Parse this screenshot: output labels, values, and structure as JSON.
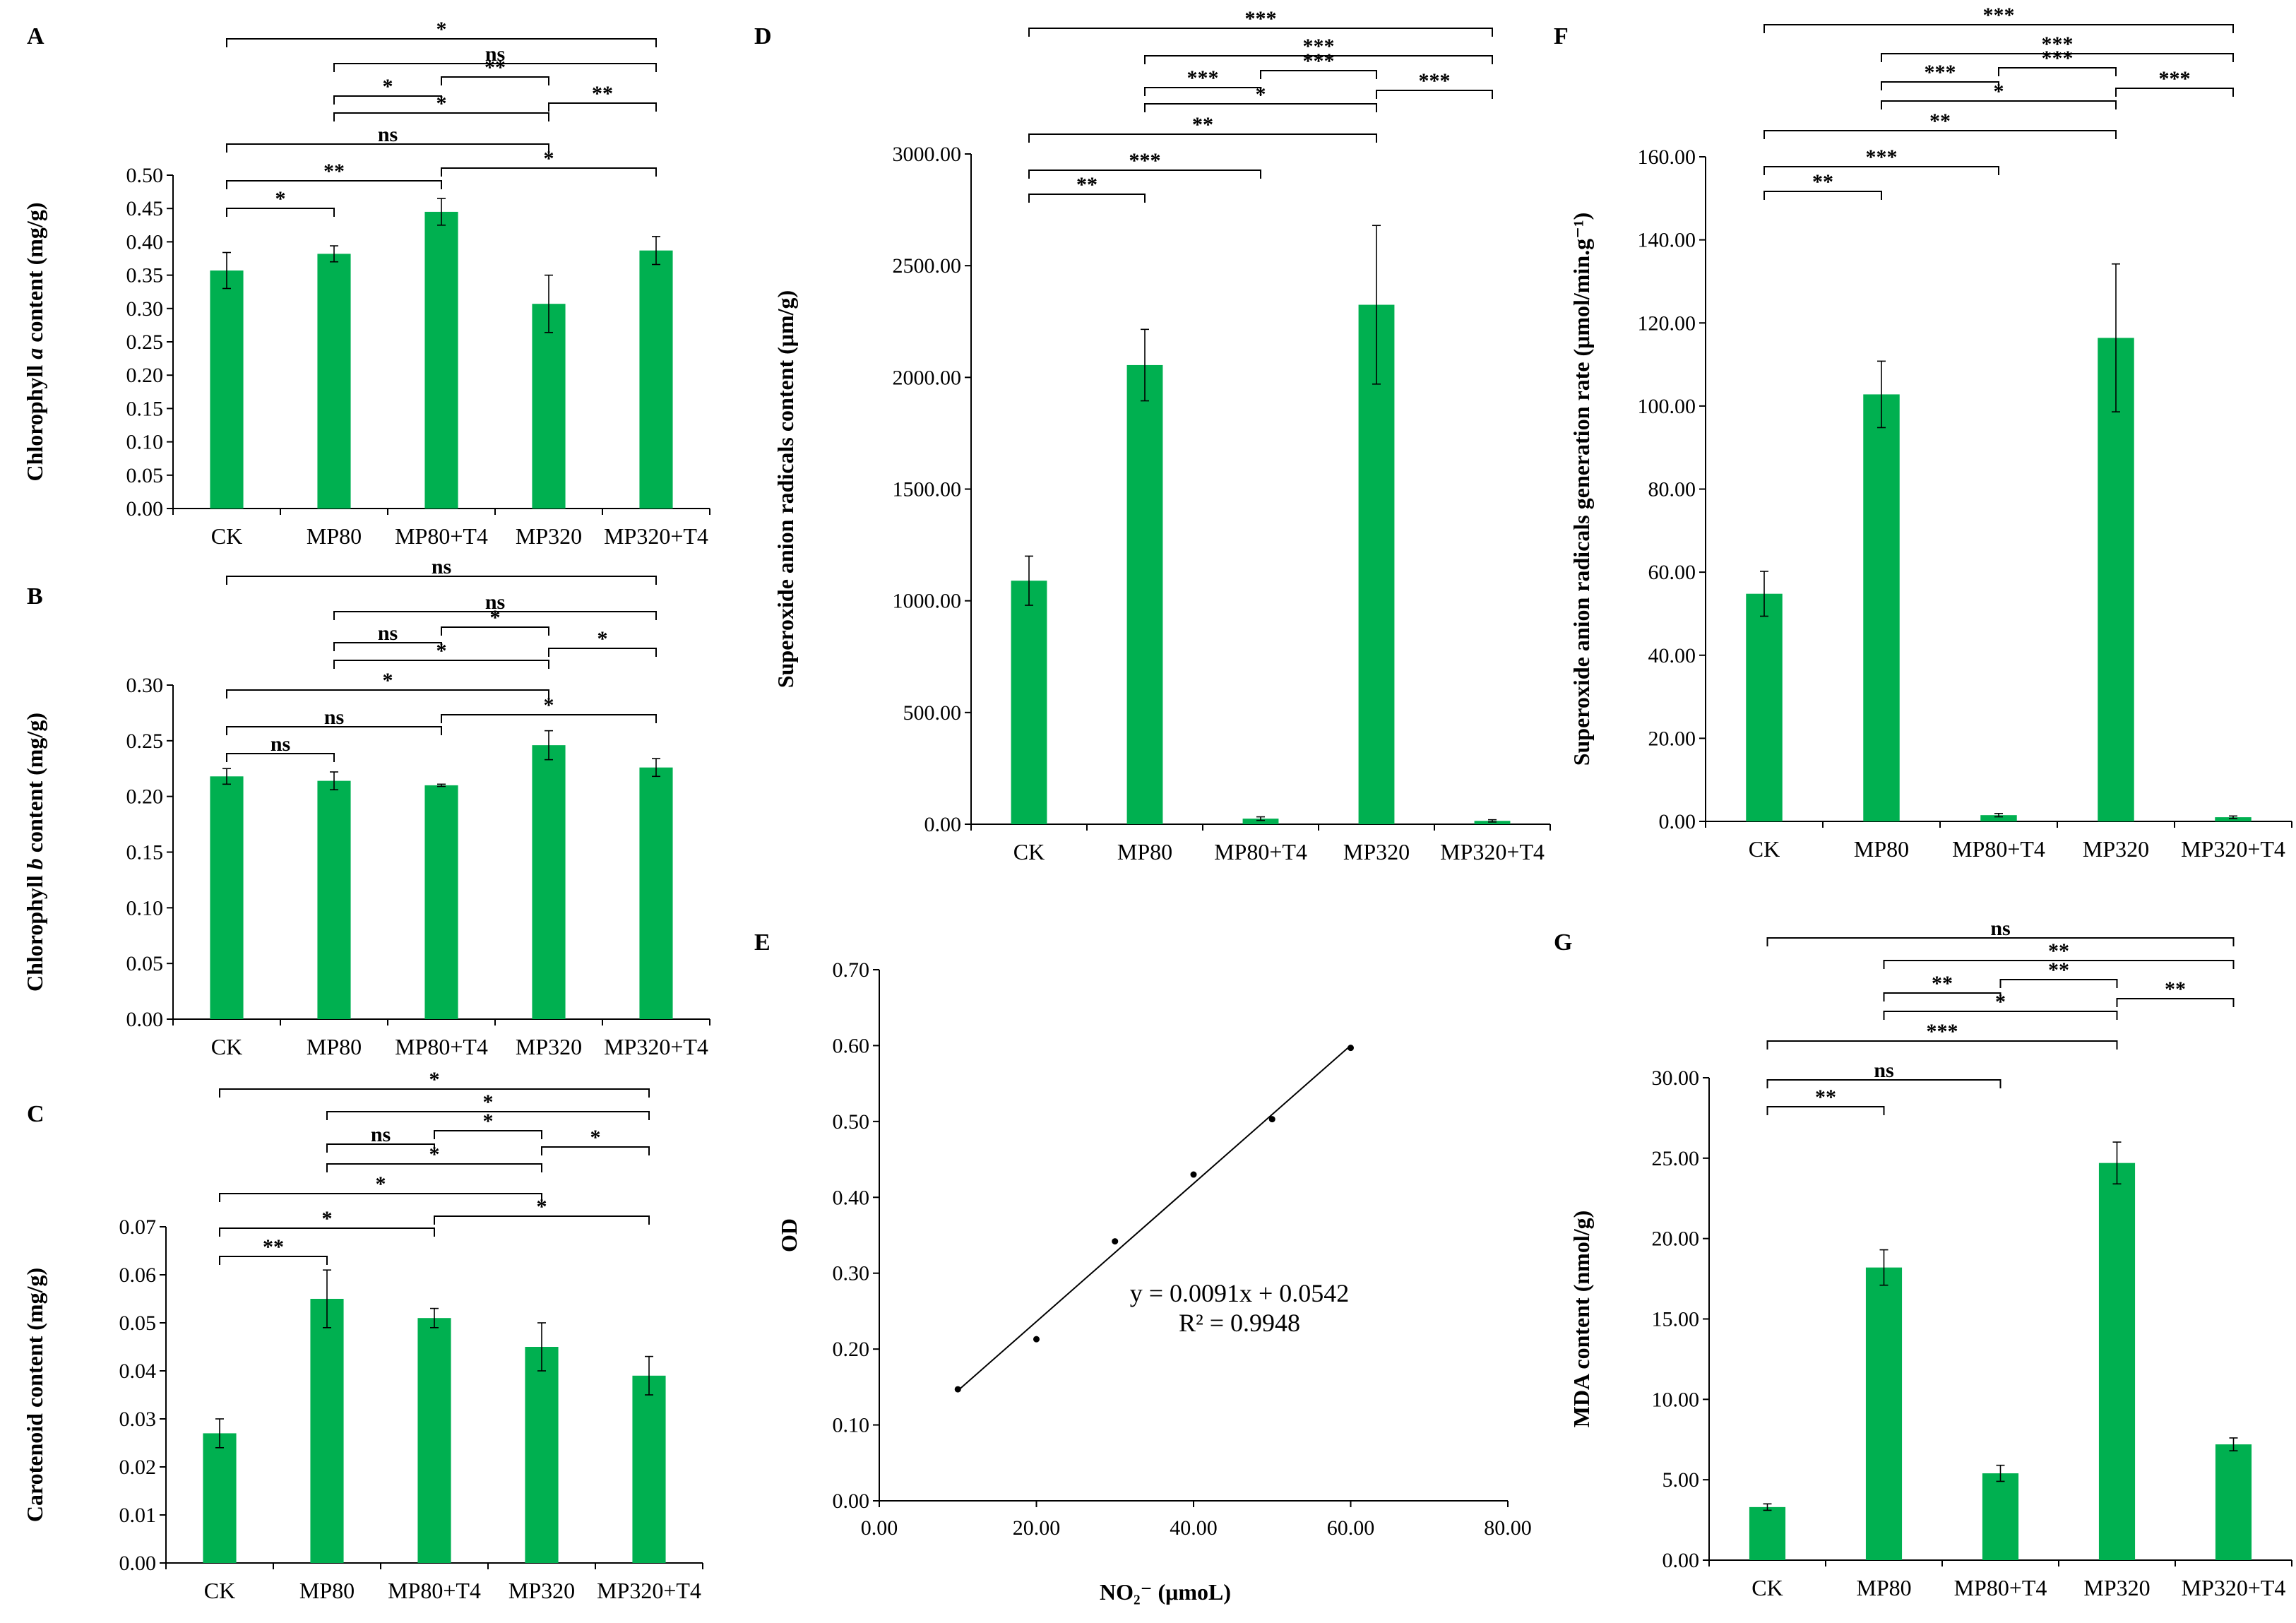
{
  "chart_data": [
    {
      "id": "A",
      "type": "bar",
      "panel_label": "A",
      "categories": [
        "CK",
        "MP80",
        "MP80+T4",
        "MP320",
        "MP320+T4"
      ],
      "values": [
        0.357,
        0.382,
        0.445,
        0.307,
        0.387
      ],
      "errors": [
        0.027,
        0.012,
        0.02,
        0.043,
        0.021
      ],
      "ylabel_pre": "Chlorophyll ",
      "ylabel_it": "a",
      "ylabel_post": " content (mg/g)",
      "ylim": [
        0,
        0.5
      ],
      "yticks": [
        "0.00",
        "0.05",
        "0.10",
        "0.15",
        "0.20",
        "0.25",
        "0.30",
        "0.35",
        "0.40",
        "0.45",
        "0.50"
      ],
      "bar_color": "#00B050",
      "brackets": [
        {
          "from": 0,
          "to": 4,
          "label": "*"
        },
        {
          "from": 1,
          "to": 4,
          "label": "ns"
        },
        {
          "from": 2,
          "to": 3,
          "label": "**"
        },
        {
          "from": 1,
          "to": 2,
          "label": "*"
        },
        {
          "from": 3,
          "to": 4,
          "label": "**"
        },
        {
          "from": 1,
          "to": 3,
          "label": "*"
        },
        {
          "from": 0,
          "to": 3,
          "label": "ns"
        },
        {
          "from": 0,
          "to": 2,
          "label": "**"
        },
        {
          "from": 2,
          "to": 4,
          "label": "*"
        },
        {
          "from": 0,
          "to": 1,
          "label": "*"
        }
      ]
    },
    {
      "id": "B",
      "type": "bar",
      "panel_label": "B",
      "categories": [
        "CK",
        "MP80",
        "MP80+T4",
        "MP320",
        "MP320+T4"
      ],
      "values": [
        0.218,
        0.214,
        0.21,
        0.246,
        0.226
      ],
      "errors": [
        0.007,
        0.008,
        0.001,
        0.013,
        0.008
      ],
      "ylabel_pre": "Chlorophyll ",
      "ylabel_it": "b",
      "ylabel_post": " content (mg/g)",
      "ylim": [
        0,
        0.3
      ],
      "yticks": [
        "0.00",
        "0.05",
        "0.10",
        "0.15",
        "0.20",
        "0.25",
        "0.30"
      ],
      "bar_color": "#00B050",
      "brackets": [
        {
          "from": 0,
          "to": 4,
          "label": "ns"
        },
        {
          "from": 1,
          "to": 4,
          "label": "ns"
        },
        {
          "from": 1,
          "to": 2,
          "label": "ns"
        },
        {
          "from": 2,
          "to": 3,
          "label": "*"
        },
        {
          "from": 1,
          "to": 3,
          "label": "*"
        },
        {
          "from": 3,
          "to": 4,
          "label": "*"
        },
        {
          "from": 0,
          "to": 3,
          "label": "*"
        },
        {
          "from": 0,
          "to": 2,
          "label": "ns"
        },
        {
          "from": 2,
          "to": 4,
          "label": "*"
        },
        {
          "from": 0,
          "to": 1,
          "label": "ns"
        }
      ]
    },
    {
      "id": "C",
      "type": "bar",
      "panel_label": "C",
      "categories": [
        "CK",
        "MP80",
        "MP80+T4",
        "MP320",
        "MP320+T4"
      ],
      "values": [
        0.027,
        0.055,
        0.051,
        0.045,
        0.039
      ],
      "errors": [
        0.003,
        0.006,
        0.002,
        0.005,
        0.004
      ],
      "ylabel_pre": "Carotenoid content (mg/g)",
      "ylabel_it": "",
      "ylabel_post": "",
      "ylim": [
        0,
        0.07
      ],
      "yticks": [
        "0.00",
        "0.01",
        "0.02",
        "0.03",
        "0.04",
        "0.05",
        "0.06",
        "0.07"
      ],
      "bar_color": "#00B050",
      "brackets": [
        {
          "from": 0,
          "to": 4,
          "label": "*"
        },
        {
          "from": 1,
          "to": 4,
          "label": "*"
        },
        {
          "from": 1,
          "to": 2,
          "label": "ns"
        },
        {
          "from": 2,
          "to": 3,
          "label": "*"
        },
        {
          "from": 3,
          "to": 4,
          "label": "*"
        },
        {
          "from": 1,
          "to": 3,
          "label": "*"
        },
        {
          "from": 0,
          "to": 3,
          "label": "*"
        },
        {
          "from": 0,
          "to": 2,
          "label": "*"
        },
        {
          "from": 2,
          "to": 4,
          "label": "*"
        },
        {
          "from": 0,
          "to": 1,
          "label": "**"
        }
      ]
    },
    {
      "id": "D",
      "type": "bar",
      "panel_label": "D",
      "categories": [
        "CK",
        "MP80",
        "MP80+T4",
        "MP320",
        "MP320+T4"
      ],
      "values": [
        1090,
        2055,
        25,
        2325,
        15
      ],
      "errors": [
        110,
        160,
        8,
        355,
        5
      ],
      "ylabel_pre": "Superoxide anion radicals content (μm/g)",
      "ylabel_it": "",
      "ylabel_post": "",
      "ylim": [
        0,
        3000
      ],
      "yticks": [
        "0.00",
        "500.00",
        "1000.00",
        "1500.00",
        "2000.00",
        "2500.00",
        "3000.00"
      ],
      "bar_color": "#00B050",
      "brackets": [
        {
          "from": 0,
          "to": 4,
          "label": "***"
        },
        {
          "from": 1,
          "to": 4,
          "label": "***"
        },
        {
          "from": 2,
          "to": 3,
          "label": "***"
        },
        {
          "from": 1,
          "to": 2,
          "label": "***"
        },
        {
          "from": 3,
          "to": 4,
          "label": "***"
        },
        {
          "from": 1,
          "to": 3,
          "label": "*"
        },
        {
          "from": 0,
          "to": 3,
          "label": "**"
        },
        {
          "from": 0,
          "to": 2,
          "label": "***"
        },
        {
          "from": 0,
          "to": 1,
          "label": "**"
        }
      ]
    },
    {
      "id": "E",
      "type": "scatter",
      "panel_label": "E",
      "x": [
        10,
        20,
        30,
        40,
        50,
        60
      ],
      "y": [
        0.147,
        0.213,
        0.342,
        0.43,
        0.503,
        0.597
      ],
      "fit": {
        "slope": 0.0091,
        "intercept": 0.0542
      },
      "equation": "y = 0.0091x + 0.0542",
      "r2": "R² = 0.9948",
      "xlabel": "NO₂⁻ (μmoL)",
      "ylabel": "OD",
      "xlim": [
        0,
        80
      ],
      "ylim": [
        0,
        0.7
      ],
      "xticks": [
        "0.00",
        "20.00",
        "40.00",
        "60.00",
        "80.00"
      ],
      "yticks": [
        "0.00",
        "0.10",
        "0.20",
        "0.30",
        "0.40",
        "0.50",
        "0.60",
        "0.70"
      ]
    },
    {
      "id": "F",
      "type": "bar",
      "panel_label": "F",
      "categories": [
        "CK",
        "MP80",
        "MP80+T4",
        "MP320",
        "MP320+T4"
      ],
      "values": [
        54.8,
        102.8,
        1.5,
        116.4,
        1.0
      ],
      "errors": [
        5.4,
        8.0,
        0.4,
        17.8,
        0.3
      ],
      "ylabel_pre": "Superoxide anion radicals generation rate (μmol/min.g⁻¹)",
      "ylabel_it": "",
      "ylabel_post": "",
      "ylim": [
        0,
        160
      ],
      "yticks": [
        "0.00",
        "20.00",
        "40.00",
        "60.00",
        "80.00",
        "100.00",
        "120.00",
        "140.00",
        "160.00"
      ],
      "bar_color": "#00B050",
      "brackets": [
        {
          "from": 0,
          "to": 4,
          "label": "***"
        },
        {
          "from": 1,
          "to": 4,
          "label": "***"
        },
        {
          "from": 2,
          "to": 3,
          "label": "***"
        },
        {
          "from": 1,
          "to": 2,
          "label": "***"
        },
        {
          "from": 3,
          "to": 4,
          "label": "***"
        },
        {
          "from": 1,
          "to": 3,
          "label": "*"
        },
        {
          "from": 0,
          "to": 3,
          "label": "**"
        },
        {
          "from": 0,
          "to": 2,
          "label": "***"
        },
        {
          "from": 0,
          "to": 1,
          "label": "**"
        }
      ]
    },
    {
      "id": "G",
      "type": "bar",
      "panel_label": "G",
      "categories": [
        "CK",
        "MP80",
        "MP80+T4",
        "MP320",
        "MP320+T4"
      ],
      "values": [
        3.3,
        18.2,
        5.4,
        24.7,
        7.2
      ],
      "errors": [
        0.2,
        1.1,
        0.5,
        1.3,
        0.4
      ],
      "ylabel_pre": "MDA content (nmol/g)",
      "ylabel_it": "",
      "ylabel_post": "",
      "ylim": [
        0,
        30
      ],
      "yticks": [
        "0.00",
        "5.00",
        "10.00",
        "15.00",
        "20.00",
        "25.00",
        "30.00"
      ],
      "bar_color": "#00B050",
      "brackets": [
        {
          "from": 0,
          "to": 4,
          "label": "ns"
        },
        {
          "from": 1,
          "to": 4,
          "label": "**"
        },
        {
          "from": 2,
          "to": 3,
          "label": "**"
        },
        {
          "from": 1,
          "to": 2,
          "label": "**"
        },
        {
          "from": 1,
          "to": 3,
          "label": "*"
        },
        {
          "from": 3,
          "to": 4,
          "label": "**"
        },
        {
          "from": 0,
          "to": 3,
          "label": "***"
        },
        {
          "from": 0,
          "to": 2,
          "label": "ns"
        },
        {
          "from": 0,
          "to": 1,
          "label": "**"
        }
      ]
    }
  ]
}
